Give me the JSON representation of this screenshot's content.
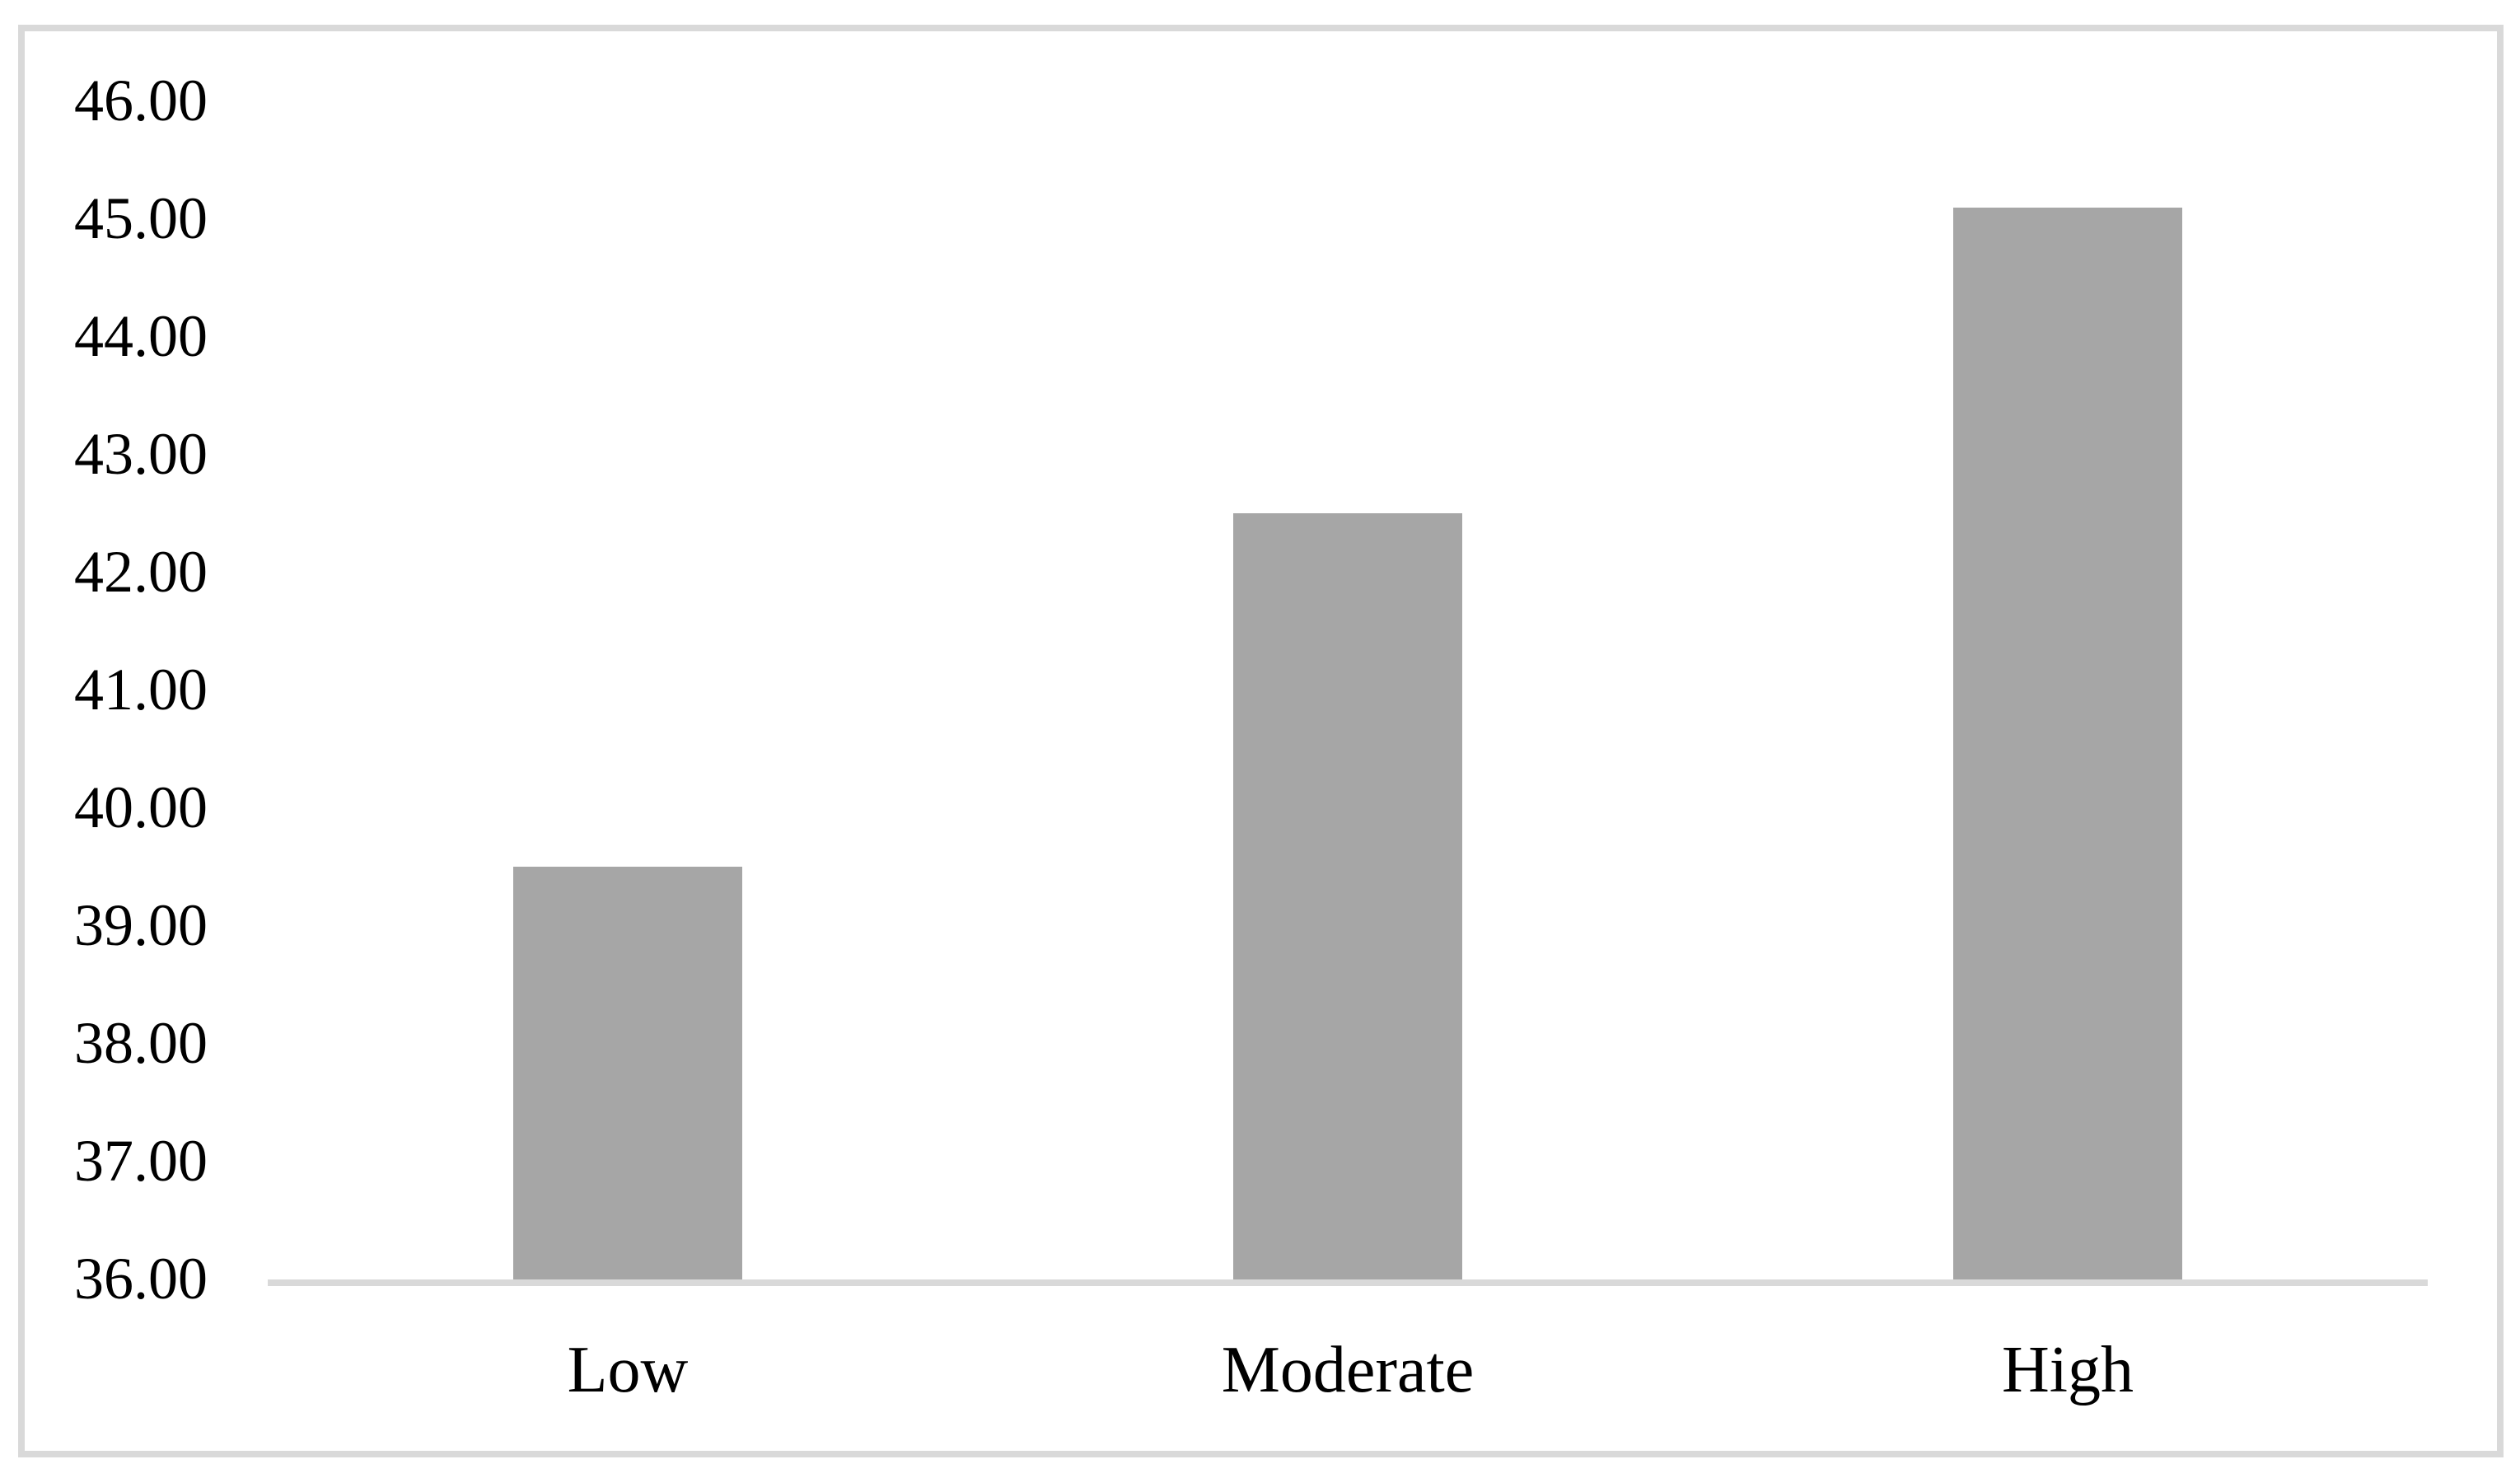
{
  "figure": {
    "kind": "journal-figure-bar-chart",
    "background_color": "#ffffff",
    "frame_border_color": "#d9d9d9",
    "text_color": "#000000"
  },
  "chart_data": {
    "type": "bar",
    "title": "",
    "xlabel": "",
    "ylabel": "",
    "categories": [
      "Low",
      "Moderate",
      "High"
    ],
    "values": [
      39.5,
      42.5,
      45.1
    ],
    "ylim": [
      36,
      46
    ],
    "ytick_step": 1,
    "ytick_labels": [
      "46.00",
      "45.00",
      "44.00",
      "43.00",
      "42.00",
      "41.00",
      "40.00",
      "39.00",
      "38.00",
      "37.00",
      "36.00"
    ],
    "grid": false,
    "legend": false,
    "bar_color": "#a6a6a6",
    "axis_line_color": "#d9d9d9"
  }
}
